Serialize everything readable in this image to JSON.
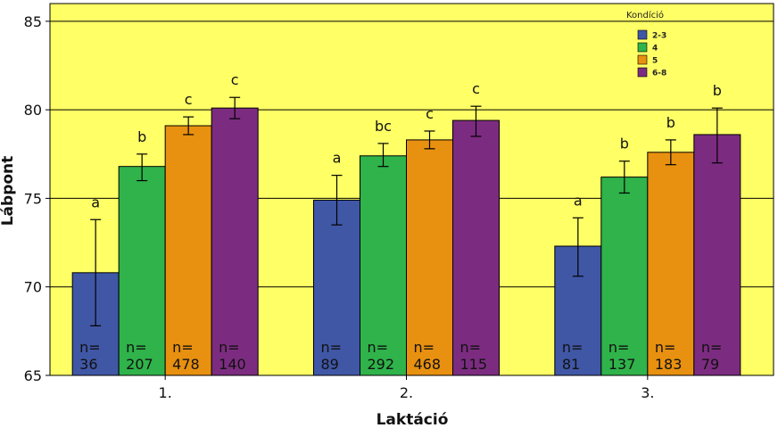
{
  "chart_data": {
    "type": "bar",
    "title": "",
    "xlabel": "Laktáció",
    "ylabel": "Lábpont",
    "ylim": [
      65,
      86
    ],
    "yticks": [
      65,
      70,
      75,
      80,
      85
    ],
    "grid": true,
    "legend": {
      "title": "Kondíció",
      "position": "top-right"
    },
    "categories": [
      "1.",
      "2.",
      "3."
    ],
    "series": [
      {
        "name": "2-3",
        "color": "#4057a6",
        "values": [
          70.8,
          74.9,
          72.3
        ],
        "err_low": [
          67.8,
          73.5,
          70.6
        ],
        "err_high": [
          73.8,
          76.3,
          73.9
        ],
        "sig": [
          "a",
          "a",
          "a"
        ],
        "n_prefix": [
          "n=",
          "n=",
          "n="
        ],
        "n": [
          "36",
          "89",
          "81"
        ]
      },
      {
        "name": "4",
        "color": "#2fb34a",
        "values": [
          76.8,
          77.4,
          76.2
        ],
        "err_low": [
          76.0,
          76.8,
          75.3
        ],
        "err_high": [
          77.5,
          78.1,
          77.1
        ],
        "sig": [
          "b",
          "bc",
          "b"
        ],
        "n_prefix": [
          "n=",
          "n=",
          "n="
        ],
        "n": [
          "207",
          "292",
          "137"
        ]
      },
      {
        "name": "5",
        "color": "#e8900f",
        "values": [
          79.1,
          78.3,
          77.6
        ],
        "err_low": [
          78.6,
          77.8,
          76.9
        ],
        "err_high": [
          79.6,
          78.8,
          78.3
        ],
        "sig": [
          "c",
          "c",
          "b"
        ],
        "n_prefix": [
          "n=",
          "n=",
          "n="
        ],
        "n": [
          "478",
          "468",
          "183"
        ]
      },
      {
        "name": "6-8",
        "color": "#7c2c80",
        "values": [
          80.1,
          79.4,
          78.6
        ],
        "err_low": [
          79.5,
          78.5,
          77.0
        ],
        "err_high": [
          80.7,
          80.2,
          80.1
        ],
        "sig": [
          "c",
          "c",
          "b"
        ],
        "n_prefix": [
          "n=",
          "n=",
          "n="
        ],
        "n": [
          "140",
          "115",
          "79"
        ]
      }
    ],
    "colors": {
      "plot_background": "#ffff66",
      "grid": "#000000"
    }
  }
}
